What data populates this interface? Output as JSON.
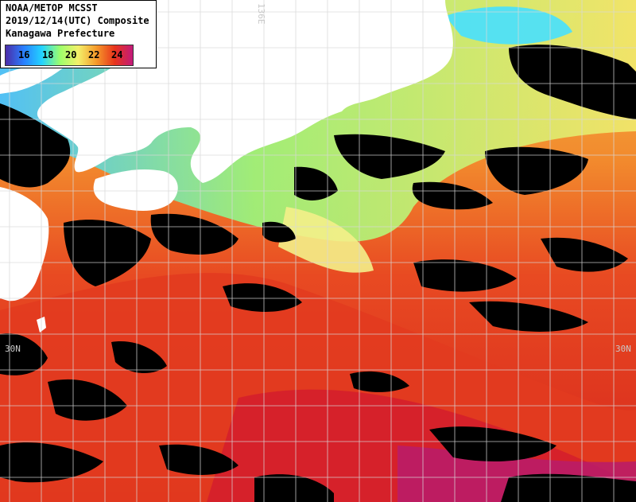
{
  "header": {
    "line1": "NOAA/METOP MCSST",
    "line2": "2019/12/14(UTC) Composite",
    "line3": "Kanagawa Prefecture"
  },
  "legend": {
    "ticks": [
      "16",
      "18",
      "20",
      "22",
      "24"
    ],
    "colors": [
      "#4b2ca8",
      "#2a7fff",
      "#22d3ff",
      "#9dff6b",
      "#f3f06a",
      "#f59a2a",
      "#e8341c",
      "#c21a7a"
    ]
  },
  "grid_labels": {
    "lon_top": "136E",
    "lat_left": "30N",
    "lat_right": "30N"
  },
  "colors": {
    "land": "#ffffff",
    "cloud": "#000000",
    "grid": "#d8d8d8",
    "warm": "#e8431f",
    "cool": "#f7d86a"
  }
}
